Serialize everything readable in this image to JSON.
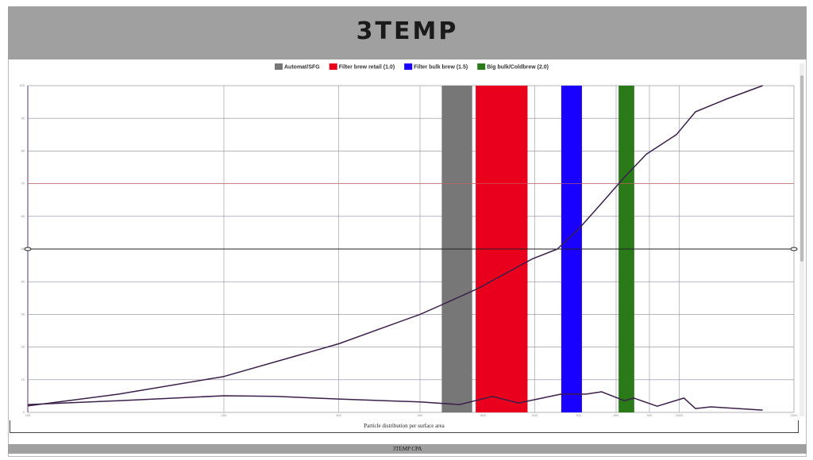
{
  "header": {
    "logo": "3TEMP"
  },
  "chart_data": {
    "type": "line",
    "xscale": "log",
    "xlim": [
      100,
      1500
    ],
    "xticks": [
      100,
      200,
      300,
      400,
      500,
      600,
      700,
      800,
      900,
      1000,
      1500
    ],
    "ylim": [
      0,
      100
    ],
    "yticks": [
      0,
      10,
      20,
      30,
      40,
      50,
      60,
      70,
      80,
      90,
      100
    ],
    "grid": true,
    "marker_y": 50,
    "reference_y": 70,
    "bands": [
      {
        "name": "Automat/SFG",
        "color": "#777777",
        "range": [
          432,
          481
        ]
      },
      {
        "name": "Filter brew retail (1.0)",
        "color": "#e8001c",
        "range": [
          487,
          585
        ]
      },
      {
        "name": "Filter bulk brew (1.5)",
        "color": "#1a00ff",
        "range": [
          659,
          709
        ]
      },
      {
        "name": "Big bulk/Coldbrew (2.0)",
        "color": "#2a7a1a",
        "range": [
          807,
          853
        ]
      }
    ],
    "series": [
      {
        "color": "#3a1f4a",
        "x": [
          100,
          138,
          200,
          300,
          400,
          433,
          492,
          595,
          650,
          700,
          760,
          824,
          890,
          990,
          1059,
          1185,
          1343
        ],
        "values": [
          2,
          5.6,
          11,
          21,
          30,
          33,
          38,
          47,
          50,
          56,
          64,
          72,
          79,
          85,
          92,
          96,
          100
        ]
      },
      {
        "color": "#3a1f4a",
        "x": [
          100,
          138,
          200,
          240,
          300,
          400,
          460,
          517,
          567,
          659,
          720,
          760,
          824,
          852,
          925,
          1017,
          1059,
          1118,
          1343
        ],
        "values": [
          2.4,
          3.6,
          5.1,
          4.9,
          4.1,
          3.2,
          2.4,
          4.9,
          2.9,
          5.6,
          5.6,
          6.3,
          3.6,
          4.4,
          1.9,
          4.4,
          1.2,
          1.7,
          0.7
        ]
      }
    ]
  },
  "caption": "Particle distribution per surface area",
  "footer": "3TEMP CPA"
}
